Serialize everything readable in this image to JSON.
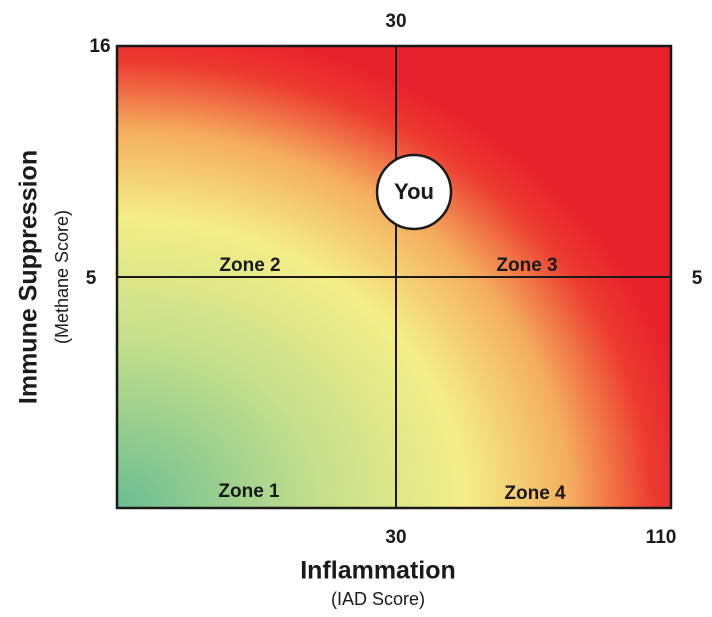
{
  "axes": {
    "x_title": "Inflammation",
    "x_subtitle": "(IAD Score)",
    "y_title": "Immune Suppression",
    "y_subtitle": "(Methane Score)"
  },
  "ticks": {
    "top_middle": "30",
    "top_left": "16",
    "left_middle": "5",
    "right_middle": "5",
    "bottom_middle": "30",
    "bottom_right": "110"
  },
  "zones": {
    "zone_1": "Zone 1",
    "zone_2": "Zone 2",
    "zone_3": "Zone 3",
    "zone_4": "Zone 4"
  },
  "marker": "You"
}
